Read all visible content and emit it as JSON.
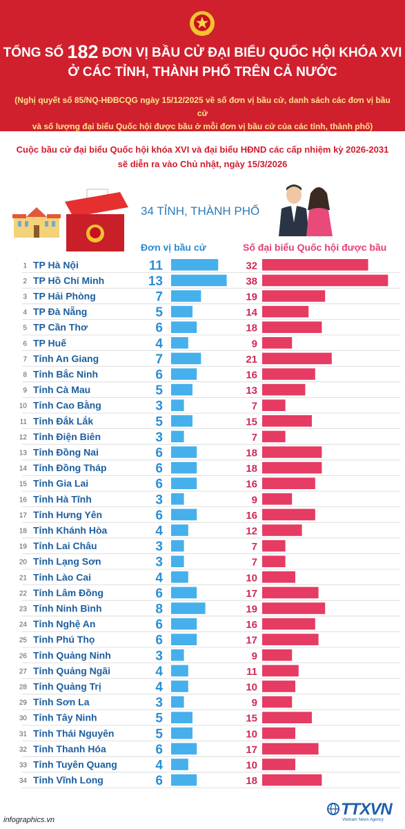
{
  "header": {
    "title_prefix": "TỔNG SỐ",
    "title_number": "182",
    "title_suffix": "ĐƠN VỊ BẦU CỬ ĐẠI BIỂU QUỐC HỘI KHÓA XVI",
    "title_line2": "Ở CÁC TỈNH, THÀNH PHỐ TRÊN CẢ NƯỚC",
    "resolution_line1": "(Nghị quyết số 85/NQ-HĐBCQG ngày 15/12/2025 về số đơn vị bầu cử, danh sách các đơn vị bầu cử",
    "resolution_line2": "và số lượng đại biểu Quốc hội được bầu ở mỗi đơn vị bầu cử của các tỉnh, thành phố)"
  },
  "election": {
    "line1": "Cuộc bầu cử đại biểu Quốc hội khóa XVI và đại biểu HĐND các cấp nhiệm kỳ 2026-2031",
    "line2": "sẽ diễn ra vào Chủ nhật, ngày 15/3/2026"
  },
  "colors": {
    "header_bg": "#d0202e",
    "blue": "#45b0ec",
    "red": "#e63b63"
  },
  "footer": {
    "source": "infographics.vn",
    "logo": "TTXVN",
    "logo_sub": "Vietnam News Agency"
  },
  "chart_data": {
    "type": "bar",
    "title": "34 TỈNH, THÀNH PHỐ",
    "categories": [
      "TP Hà Nội",
      "TP Hồ Chí Minh",
      "TP Hải Phòng",
      "TP Đà Nẵng",
      "TP Cần Thơ",
      "TP Huế",
      "Tỉnh An Giang",
      "Tỉnh Bắc Ninh",
      "Tỉnh Cà Mau",
      "Tỉnh Cao Bằng",
      "Tỉnh Đắk Lắk",
      "Tỉnh Điện Biên",
      "Tỉnh Đồng Nai",
      "Tỉnh Đồng Tháp",
      "Tỉnh Gia Lai",
      "Tỉnh Hà Tĩnh",
      "Tỉnh Hưng Yên",
      "Tỉnh Khánh Hòa",
      "Tỉnh Lai Châu",
      "Tỉnh Lạng Sơn",
      "Tỉnh Lào Cai",
      "Tỉnh Lâm Đồng",
      "Tỉnh Ninh Bình",
      "Tỉnh Nghệ An",
      "Tỉnh Phú Thọ",
      "Tỉnh Quảng Ninh",
      "Tỉnh Quảng Ngãi",
      "Tỉnh Quảng Trị",
      "Tỉnh Sơn La",
      "Tỉnh Tây Ninh",
      "Tỉnh Thái Nguyên",
      "Tỉnh Thanh Hóa",
      "Tỉnh Tuyên Quang",
      "Tỉnh Vĩnh Long"
    ],
    "series": [
      {
        "name": "Đơn vị bầu cử",
        "values": [
          11,
          13,
          7,
          5,
          6,
          4,
          7,
          6,
          5,
          3,
          5,
          3,
          6,
          6,
          6,
          3,
          6,
          4,
          3,
          3,
          4,
          6,
          8,
          6,
          6,
          3,
          4,
          4,
          3,
          5,
          5,
          6,
          4,
          6
        ]
      },
      {
        "name": "Số đại biểu Quốc hội được bầu",
        "values": [
          32,
          38,
          19,
          14,
          18,
          9,
          21,
          16,
          13,
          7,
          15,
          7,
          18,
          18,
          16,
          9,
          16,
          12,
          7,
          7,
          10,
          17,
          19,
          16,
          17,
          9,
          11,
          10,
          9,
          15,
          10,
          17,
          10,
          18
        ]
      }
    ]
  }
}
